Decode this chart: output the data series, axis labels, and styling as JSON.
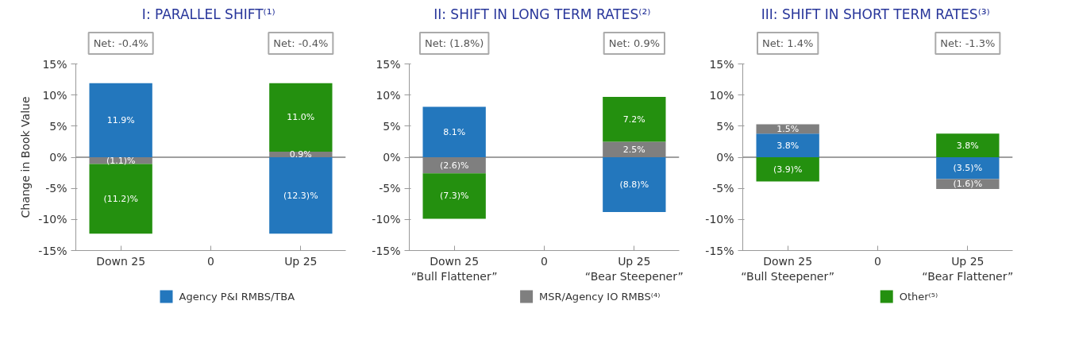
{
  "chart_data": [
    {
      "type": "bar",
      "stacked": true,
      "title": "I:  PARALLEL SHIFT⁽¹⁾",
      "ylabel": "Change in Book Value",
      "categories": [
        "Down 25",
        "0",
        "Up 25"
      ],
      "series": [
        {
          "name": "Agency P&I RMBS/TBA",
          "color": "#2377bd",
          "values": [
            11.9,
            null,
            -12.3
          ],
          "value_labels": [
            "11.9%",
            null,
            "(12.3)%"
          ]
        },
        {
          "name": "MSR/Agency IO RMBS⁽⁴⁾",
          "color": "#7f7f7f",
          "values": [
            -1.1,
            null,
            0.9
          ],
          "value_labels": [
            "(1.1)%",
            null,
            "0.9%"
          ]
        },
        {
          "name": "Other⁽⁵⁾",
          "color": "#24900f",
          "values": [
            -11.2,
            null,
            11.0
          ],
          "value_labels": [
            "(11.2)%",
            null,
            "11.0%"
          ]
        }
      ],
      "ylim": [
        -15,
        15
      ],
      "yticks": [
        {
          "value": -15,
          "label": "-15%"
        },
        {
          "value": -10,
          "label": "-10%"
        },
        {
          "value": -5,
          "label": "-5%"
        },
        {
          "value": 0,
          "label": "0%"
        },
        {
          "value": 5,
          "label": "5%"
        },
        {
          "value": 10,
          "label": "10%"
        },
        {
          "value": 15,
          "label": "15%"
        }
      ],
      "grid": false,
      "legend": "bottom",
      "ref_lines": [
        {
          "axis": "y",
          "value": 0,
          "color": "#808080"
        }
      ],
      "annotations": [
        "Net: -0.4%",
        "Net: -0.4%"
      ]
    },
    {
      "type": "bar",
      "stacked": true,
      "title": "II:  SHIFT IN LONG TERM RATES⁽²⁾",
      "categories": [
        "Down 25\n“Bull Flattener”",
        "0",
        "Up 25\n“Bear Steepener”"
      ],
      "series": [
        {
          "color": "#2377bd",
          "values": [
            8.1,
            null,
            -8.8
          ],
          "value_labels": [
            "8.1%",
            null,
            "(8.8)%"
          ]
        },
        {
          "color": "#7f7f7f",
          "values": [
            -2.6,
            null,
            2.5
          ],
          "value_labels": [
            "(2.6)%",
            null,
            "2.5%"
          ]
        },
        {
          "color": "#24900f",
          "values": [
            -7.3,
            null,
            7.2
          ],
          "value_labels": [
            "(7.3)%",
            null,
            "7.2%"
          ]
        }
      ],
      "ylim": [
        -15,
        15
      ],
      "yticks": [
        {
          "value": -15,
          "label": "-15%"
        },
        {
          "value": -10,
          "label": "-10%"
        },
        {
          "value": -5,
          "label": "-5%"
        },
        {
          "value": 0,
          "label": "0%"
        },
        {
          "value": 5,
          "label": "5%"
        },
        {
          "value": 10,
          "label": "10%"
        },
        {
          "value": 15,
          "label": "15%"
        }
      ],
      "grid": false,
      "ref_lines": [
        {
          "axis": "y",
          "value": 0,
          "color": "#808080"
        }
      ],
      "annotations": [
        "Net: (1.8%)",
        "Net: 0.9%"
      ]
    },
    {
      "type": "bar",
      "stacked": true,
      "title": "III:  SHIFT IN SHORT TERM RATES⁽³⁾",
      "categories": [
        "Down 25\n“Bull Steepener”",
        "0",
        "Up 25\n“Bear Flattener”"
      ],
      "series": [
        {
          "color": "#2377bd",
          "values": [
            3.8,
            null,
            -3.5
          ],
          "value_labels": [
            "3.8%",
            null,
            "(3.5)%"
          ]
        },
        {
          "color": "#7f7f7f",
          "values": [
            1.5,
            null,
            -1.6
          ],
          "value_labels": [
            "1.5%",
            null,
            "(1.6)%"
          ]
        },
        {
          "color": "#24900f",
          "values": [
            -3.9,
            null,
            3.8
          ],
          "value_labels": [
            "(3.9)%",
            null,
            "3.8%"
          ]
        }
      ],
      "ylim": [
        -15,
        15
      ],
      "yticks": [
        {
          "value": -15,
          "label": "-15%"
        },
        {
          "value": -10,
          "label": "-10%"
        },
        {
          "value": -5,
          "label": "-5%"
        },
        {
          "value": 0,
          "label": "0%"
        },
        {
          "value": 5,
          "label": "5%"
        },
        {
          "value": 10,
          "label": "10%"
        },
        {
          "value": 15,
          "label": "15%"
        }
      ],
      "grid": false,
      "ref_lines": [
        {
          "axis": "y",
          "value": 0,
          "color": "#808080"
        }
      ],
      "annotations": [
        "Net: 1.4%",
        "Net: -1.3%"
      ]
    }
  ]
}
